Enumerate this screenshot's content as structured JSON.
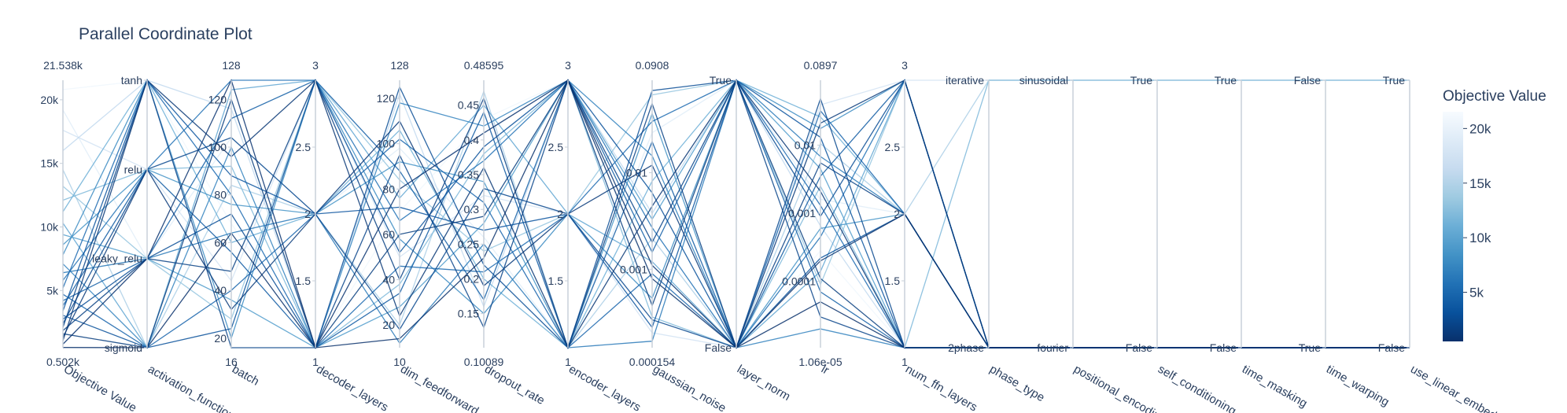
{
  "chart_data": {
    "type": "parallel_coordinates",
    "title": "Parallel Coordinate Plot",
    "colorbar": {
      "title": "Objective Value",
      "range": [
        502,
        21538
      ],
      "ticks": [
        {
          "v": 5000,
          "t": "5k"
        },
        {
          "v": 10000,
          "t": "10k"
        },
        {
          "v": 15000,
          "t": "15k"
        },
        {
          "v": 20000,
          "t": "20k"
        }
      ],
      "colorscale": [
        "#08306b",
        "#08519c",
        "#2171b5",
        "#4292c6",
        "#6baed6",
        "#9ecae1",
        "#c6dbef",
        "#deebf7",
        "#f7fbff"
      ]
    },
    "axes": [
      {
        "name": "Objective Value",
        "type": "linear",
        "range": [
          502,
          21538
        ],
        "range_labels": [
          "0.502k",
          "21.538k"
        ],
        "ticks": [
          {
            "v": 5000,
            "t": "5k"
          },
          {
            "v": 10000,
            "t": "10k"
          },
          {
            "v": 15000,
            "t": "15k"
          },
          {
            "v": 20000,
            "t": "20k"
          }
        ]
      },
      {
        "name": "activation_function",
        "type": "categorical",
        "categories": [
          "sigmoid",
          "leaky_relu",
          "relu",
          "tanh"
        ]
      },
      {
        "name": "batch",
        "type": "linear",
        "range": [
          16,
          128
        ],
        "range_labels": [
          "16",
          "128"
        ],
        "ticks": [
          {
            "v": 20,
            "t": "20"
          },
          {
            "v": 40,
            "t": "40"
          },
          {
            "v": 60,
            "t": "60"
          },
          {
            "v": 80,
            "t": "80"
          },
          {
            "v": 100,
            "t": "100"
          },
          {
            "v": 120,
            "t": "120"
          }
        ]
      },
      {
        "name": "decoder_layers",
        "type": "linear",
        "range": [
          1,
          3
        ],
        "range_labels": [
          "1",
          "3"
        ],
        "ticks": [
          {
            "v": 1.5,
            "t": "1.5"
          },
          {
            "v": 2,
            "t": "2"
          },
          {
            "v": 2.5,
            "t": "2.5"
          }
        ]
      },
      {
        "name": "dim_feedforward",
        "type": "linear",
        "range": [
          10,
          128
        ],
        "range_labels": [
          "10",
          "128"
        ],
        "ticks": [
          {
            "v": 20,
            "t": "20"
          },
          {
            "v": 40,
            "t": "40"
          },
          {
            "v": 60,
            "t": "60"
          },
          {
            "v": 80,
            "t": "80"
          },
          {
            "v": 100,
            "t": "100"
          },
          {
            "v": 120,
            "t": "120"
          }
        ]
      },
      {
        "name": "dropout_rate",
        "type": "linear",
        "range": [
          0.10089,
          0.48595
        ],
        "range_labels": [
          "0.10089",
          "0.48595"
        ],
        "ticks": [
          {
            "v": 0.15,
            "t": "0.15"
          },
          {
            "v": 0.2,
            "t": "0.2"
          },
          {
            "v": 0.25,
            "t": "0.25"
          },
          {
            "v": 0.3,
            "t": "0.3"
          },
          {
            "v": 0.35,
            "t": "0.35"
          },
          {
            "v": 0.4,
            "t": "0.4"
          },
          {
            "v": 0.45,
            "t": "0.45"
          }
        ]
      },
      {
        "name": "encoder_layers",
        "type": "linear",
        "range": [
          1,
          3
        ],
        "range_labels": [
          "1",
          "3"
        ],
        "ticks": [
          {
            "v": 1.5,
            "t": "1.5"
          },
          {
            "v": 2,
            "t": "2"
          },
          {
            "v": 2.5,
            "t": "2.5"
          }
        ]
      },
      {
        "name": "gaussian_noise",
        "type": "log",
        "range": [
          0.000154,
          0.0908
        ],
        "range_labels": [
          "0.000154",
          "0.0908"
        ],
        "ticks": [
          {
            "v": 0.001,
            "t": "0.001"
          },
          {
            "v": 0.01,
            "t": "0.01"
          }
        ]
      },
      {
        "name": "layer_norm",
        "type": "categorical",
        "categories": [
          "False",
          "True"
        ]
      },
      {
        "name": "lr",
        "type": "log",
        "range": [
          1.06e-05,
          0.0897
        ],
        "range_labels": [
          "1.06e-05",
          "0.0897"
        ],
        "ticks": [
          {
            "v": 0.0001,
            "t": "0.0001"
          },
          {
            "v": 0.001,
            "t": "0.001"
          },
          {
            "v": 0.01,
            "t": "0.01"
          }
        ]
      },
      {
        "name": "num_ffn_layers",
        "type": "linear",
        "range": [
          1,
          3
        ],
        "range_labels": [
          "1",
          "3"
        ],
        "ticks": [
          {
            "v": 1.5,
            "t": "1.5"
          },
          {
            "v": 2,
            "t": "2"
          },
          {
            "v": 2.5,
            "t": "2.5"
          }
        ]
      },
      {
        "name": "phase_type",
        "type": "categorical",
        "categories": [
          "2phase",
          "iterative"
        ]
      },
      {
        "name": "positional_encoding",
        "type": "categorical",
        "categories": [
          "fourier",
          "sinusoidal"
        ]
      },
      {
        "name": "self_conditioning",
        "type": "categorical",
        "categories": [
          "False",
          "True"
        ]
      },
      {
        "name": "time_masking",
        "type": "categorical",
        "categories": [
          "False",
          "True"
        ]
      },
      {
        "name": "time_warping",
        "type": "categorical",
        "categories": [
          "True",
          "False"
        ]
      },
      {
        "name": "use_linear_embedding",
        "type": "categorical",
        "categories": [
          "False",
          "True"
        ]
      }
    ],
    "trials": [
      {
        "objective": 520,
        "values": [
          "sigmoid",
          64,
          1,
          14,
          0.23,
          3,
          0.0008,
          "False",
          5e-05,
          1,
          "2phase",
          "fourier",
          "False",
          "False",
          "True",
          "False"
        ]
      },
      {
        "objective": 780,
        "values": [
          "leaky_relu",
          128,
          1,
          80,
          0.41,
          3,
          0.0011,
          "False",
          0.0002,
          2,
          "2phase",
          "fourier",
          "False",
          "False",
          "True",
          "False"
        ]
      },
      {
        "objective": 1050,
        "values": [
          "tanh",
          96,
          3,
          24,
          0.36,
          1,
          0.0045,
          "True",
          0.0021,
          1,
          "2phase",
          "fourier",
          "False",
          "False",
          "True",
          "False"
        ]
      },
      {
        "objective": 1320,
        "values": [
          "relu",
          32,
          2,
          110,
          0.19,
          2,
          0.012,
          "False",
          0.021,
          3,
          "2phase",
          "fourier",
          "False",
          "False",
          "True",
          "False"
        ]
      },
      {
        "objective": 1600,
        "values": [
          "sigmoid",
          120,
          1,
          60,
          0.29,
          3,
          0.00042,
          "True",
          0.00011,
          1,
          "2phase",
          "fourier",
          "False",
          "False",
          "True",
          "False"
        ]
      },
      {
        "objective": 1850,
        "values": [
          "leaky_relu",
          48,
          3,
          40,
          0.46,
          1,
          0.052,
          "False",
          0.0055,
          2,
          "2phase",
          "fourier",
          "False",
          "False",
          "True",
          "False"
        ]
      },
      {
        "objective": 2100,
        "values": [
          "tanh",
          16,
          1,
          95,
          0.13,
          3,
          0.0019,
          "True",
          3e-05,
          1,
          "2phase",
          "fourier",
          "False",
          "False",
          "True",
          "False"
        ]
      },
      {
        "objective": 2400,
        "values": [
          "relu",
          104,
          2,
          18,
          0.33,
          2,
          0.0003,
          "False",
          0.048,
          1,
          "2phase",
          "fourier",
          "False",
          "False",
          "True",
          "False"
        ]
      },
      {
        "objective": 2750,
        "values": [
          "leaky_relu",
          72,
          1,
          125,
          0.22,
          1,
          0.071,
          "True",
          0.0009,
          3,
          "2phase",
          "fourier",
          "False",
          "False",
          "True",
          "False"
        ]
      },
      {
        "objective": 3050,
        "values": [
          "sigmoid",
          24,
          3,
          52,
          0.39,
          3,
          0.0062,
          "False",
          0.00022,
          2,
          "2phase",
          "fourier",
          "False",
          "False",
          "True",
          "False"
        ]
      },
      {
        "objective": 3400,
        "values": [
          "tanh",
          88,
          2,
          72,
          0.27,
          2,
          0.00025,
          "True",
          0.013,
          1,
          "2phase",
          "fourier",
          "False",
          "False",
          "True",
          "False"
        ]
      },
      {
        "objective": 3800,
        "values": [
          "relu",
          56,
          1,
          34,
          0.44,
          1,
          0.021,
          "False",
          0.0035,
          3,
          "2phase",
          "fourier",
          "False",
          "False",
          "True",
          "False"
        ]
      },
      {
        "objective": 4200,
        "values": [
          "leaky_relu",
          112,
          3,
          88,
          0.17,
          3,
          0.0015,
          "True",
          7e-05,
          1,
          "2phase",
          "fourier",
          "False",
          "False",
          "True",
          "False"
        ]
      },
      {
        "objective": 4700,
        "values": [
          "sigmoid",
          40,
          2,
          102,
          0.31,
          1,
          0.0009,
          "False",
          0.032,
          2,
          "2phase",
          "fourier",
          "False",
          "False",
          "True",
          "False"
        ]
      },
      {
        "objective": 5200,
        "values": [
          "tanh",
          80,
          1,
          46,
          0.21,
          2,
          0.034,
          "True",
          0.0013,
          1,
          "2phase",
          "fourier",
          "False",
          "False",
          "True",
          "False"
        ]
      },
      {
        "objective": 5800,
        "values": [
          "relu",
          128,
          3,
          66,
          0.37,
          3,
          0.0027,
          "False",
          0.00045,
          3,
          "2phase",
          "fourier",
          "False",
          "False",
          "True",
          "False"
        ]
      },
      {
        "objective": 6400,
        "values": [
          "leaky_relu",
          64,
          2,
          12,
          0.25,
          1,
          0.00018,
          "True",
          0.0068,
          2,
          "2phase",
          "fourier",
          "False",
          "False",
          "True",
          "False"
        ]
      },
      {
        "objective": 7100,
        "values": [
          "sigmoid",
          100,
          1,
          118,
          0.42,
          3,
          0.015,
          "False",
          2e-05,
          1,
          "2phase",
          "fourier",
          "False",
          "False",
          "True",
          "False"
        ]
      },
      {
        "objective": 7800,
        "values": [
          "tanh",
          20,
          3,
          58,
          0.15,
          2,
          0.0005,
          "True",
          0.0175,
          3,
          "2phase",
          "fourier",
          "False",
          "False",
          "True",
          "False"
        ]
      },
      {
        "objective": 8600,
        "values": [
          "relu",
          76,
          2,
          92,
          0.34,
          1,
          0.041,
          "False",
          0.0006,
          2,
          "2phase",
          "fourier",
          "False",
          "False",
          "True",
          "False"
        ]
      },
      {
        "objective": 9400,
        "values": [
          "leaky_relu",
          36,
          1,
          28,
          0.28,
          3,
          0.0033,
          "True",
          0.0045,
          1,
          "2phase",
          "fourier",
          "False",
          "False",
          "True",
          "False"
        ]
      },
      {
        "objective": 10300,
        "values": [
          "sigmoid",
          124,
          3,
          76,
          0.45,
          2,
          0.0012,
          "False",
          0.00014,
          3,
          "2phase",
          "fourier",
          "False",
          "False",
          "True",
          "False"
        ]
      },
      {
        "objective": 11200,
        "values": [
          "tanh",
          60,
          2,
          106,
          0.2,
          1,
          0.0082,
          "True",
          0.026,
          2,
          "2phase",
          "fourier",
          "False",
          "False",
          "True",
          "False"
        ]
      },
      {
        "objective": 12100,
        "values": [
          "relu",
          92,
          1,
          38,
          0.38,
          3,
          0.00032,
          "False",
          0.0025,
          1,
          "iterative",
          "sinusoidal",
          "True",
          "True",
          "False",
          "True"
        ]
      },
      {
        "objective": 13200,
        "values": [
          "leaky_relu",
          28,
          3,
          84,
          0.24,
          2,
          0.064,
          "True",
          9e-05,
          3,
          "2phase",
          "fourier",
          "False",
          "False",
          "True",
          "False"
        ]
      },
      {
        "objective": 14500,
        "values": [
          "sigmoid",
          84,
          2,
          20,
          0.47,
          1,
          0.0021,
          "False",
          0.0105,
          2,
          "iterative",
          "sinusoidal",
          "True",
          "True",
          "False",
          "True"
        ]
      },
      {
        "objective": 16000,
        "values": [
          "tanh",
          116,
          1,
          122,
          0.16,
          3,
          0.0038,
          "True",
          0.00065,
          1,
          "2phase",
          "fourier",
          "False",
          "False",
          "True",
          "False"
        ]
      },
      {
        "objective": 17600,
        "values": [
          "relu",
          44,
          3,
          50,
          0.32,
          2,
          0.00022,
          "False",
          0.039,
          3,
          "iterative",
          "sinusoidal",
          "True",
          "True",
          "False",
          "True"
        ]
      },
      {
        "objective": 19200,
        "values": [
          "leaky_relu",
          104,
          2,
          98,
          0.26,
          1,
          0.026,
          "True",
          0.0016,
          2,
          "2phase",
          "fourier",
          "False",
          "False",
          "True",
          "False"
        ]
      },
      {
        "objective": 20800,
        "values": [
          "tanh",
          68,
          1,
          70,
          0.43,
          3,
          0.00075,
          "False",
          0.00028,
          1,
          "iterative",
          "sinusoidal",
          "True",
          "True",
          "False",
          "True"
        ]
      }
    ]
  }
}
